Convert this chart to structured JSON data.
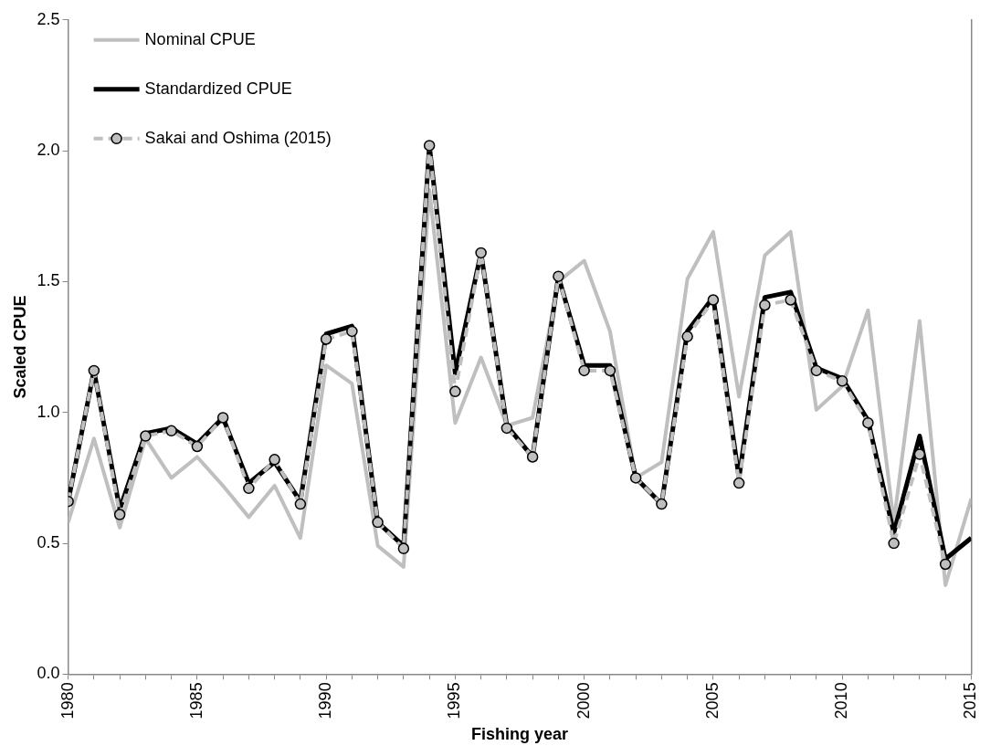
{
  "chart_data": {
    "type": "line",
    "xlabel": "Fishing year",
    "ylabel": "Scaled CPUE",
    "x": [
      1980,
      1981,
      1982,
      1983,
      1984,
      1985,
      1986,
      1987,
      1988,
      1989,
      1990,
      1991,
      1992,
      1993,
      1994,
      1995,
      1996,
      1997,
      1998,
      1999,
      2000,
      2001,
      2002,
      2003,
      2004,
      2005,
      2006,
      2007,
      2008,
      2009,
      2010,
      2011,
      2012,
      2013,
      2014,
      2015
    ],
    "series": [
      {
        "name": "Nominal CPUE",
        "color": "#bfbfbf",
        "line_style": "solid",
        "marker": "none",
        "values": [
          0.58,
          0.9,
          0.56,
          0.9,
          0.75,
          0.83,
          0.72,
          0.6,
          0.72,
          0.52,
          1.18,
          1.11,
          0.49,
          0.41,
          1.85,
          0.96,
          1.21,
          0.95,
          0.98,
          1.5,
          1.58,
          1.31,
          0.75,
          0.81,
          1.51,
          1.69,
          1.06,
          1.6,
          1.69,
          1.01,
          1.1,
          1.39,
          0.58,
          1.35,
          0.34,
          0.67
        ]
      },
      {
        "name": "Standardized CPUE",
        "color": "#000000",
        "line_style": "solid",
        "marker": "none",
        "values": [
          0.66,
          1.16,
          0.63,
          0.92,
          0.94,
          0.88,
          0.98,
          0.73,
          0.81,
          0.66,
          1.3,
          1.33,
          0.58,
          0.49,
          2.02,
          1.15,
          1.61,
          0.95,
          0.83,
          1.52,
          1.18,
          1.18,
          0.75,
          0.65,
          1.31,
          1.44,
          0.75,
          1.44,
          1.46,
          1.17,
          1.13,
          0.97,
          0.54,
          0.91,
          0.44,
          0.52
        ]
      },
      {
        "name": "Sakai and Oshima (2015)",
        "color": "#bfbfbf",
        "line_style": "dashed",
        "marker": "circle",
        "values": [
          0.66,
          1.16,
          0.61,
          0.91,
          0.93,
          0.87,
          0.98,
          0.71,
          0.82,
          0.65,
          1.28,
          1.31,
          0.58,
          0.48,
          2.02,
          1.08,
          1.61,
          0.94,
          0.83,
          1.52,
          1.16,
          1.16,
          0.75,
          0.65,
          1.29,
          1.43,
          0.73,
          1.41,
          1.43,
          1.16,
          1.12,
          0.96,
          0.5,
          0.84,
          0.42,
          null
        ]
      }
    ],
    "xlim": [
      1980,
      2015
    ],
    "xticks": [
      1980,
      {
        "value": 1981,
        "label": null
      },
      {
        "value": 1982,
        "label": null
      },
      {
        "value": 1983,
        "label": null
      },
      {
        "value": 1984,
        "label": null
      },
      1985,
      {
        "value": 1986,
        "label": null
      },
      {
        "value": 1987,
        "label": null
      },
      {
        "value": 1988,
        "label": null
      },
      {
        "value": 1989,
        "label": null
      },
      1990,
      {
        "value": 1991,
        "label": null
      },
      {
        "value": 1992,
        "label": null
      },
      {
        "value": 1993,
        "label": null
      },
      {
        "value": 1994,
        "label": null
      },
      1995,
      {
        "value": 1996,
        "label": null
      },
      {
        "value": 1997,
        "label": null
      },
      {
        "value": 1998,
        "label": null
      },
      {
        "value": 1999,
        "label": null
      },
      2000,
      {
        "value": 2001,
        "label": null
      },
      {
        "value": 2002,
        "label": null
      },
      {
        "value": 2003,
        "label": null
      },
      {
        "value": 2004,
        "label": null
      },
      2005,
      {
        "value": 2006,
        "label": null
      },
      {
        "value": 2007,
        "label": null
      },
      {
        "value": 2008,
        "label": null
      },
      {
        "value": 2009,
        "label": null
      },
      2010,
      {
        "value": 2011,
        "label": null
      },
      {
        "value": 2012,
        "label": null
      },
      {
        "value": 2013,
        "label": null
      },
      {
        "value": 2014,
        "label": null
      },
      2015
    ],
    "ylim": [
      0,
      2.5
    ],
    "yticks": [
      {
        "value": 0,
        "label": "0.0"
      },
      {
        "value": 0.5,
        "label": "0.5"
      },
      {
        "value": 1,
        "label": "1.0"
      },
      {
        "value": 1.5,
        "label": "1.5"
      },
      {
        "value": 2,
        "label": "2.0"
      },
      {
        "value": 2.5,
        "label": "2.5"
      }
    ],
    "grid": false,
    "legend": "top left"
  }
}
